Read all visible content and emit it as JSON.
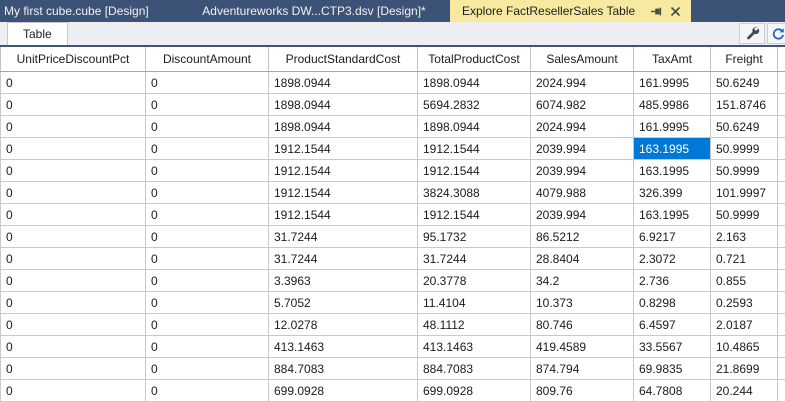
{
  "window": {
    "tabs": [
      {
        "label": "My first cube.cube [Design]",
        "state": "inactive"
      },
      {
        "label": "Adventureworks DW...CTP3.dsv [Design]*",
        "state": "inactive"
      },
      {
        "label": "Explore FactResellerSales Table",
        "state": "active"
      }
    ]
  },
  "toolbar": {
    "table_tab_label": "Table",
    "buttons": [
      {
        "icon": "wrench-icon"
      },
      {
        "icon": "refresh-icon"
      }
    ]
  },
  "colors": {
    "tabstrip_bg": "#3d5277",
    "active_tab_bg": "#f7e9a0",
    "toolbar_bg": "#eeeef2",
    "selection": "#0078d7",
    "selection_text": "#ffffff",
    "grid_line": "#c9c9c9"
  },
  "grid": {
    "columns": [
      "UnitPriceDiscountPct",
      "DiscountAmount",
      "ProductStandardCost",
      "TotalProductCost",
      "SalesAmount",
      "TaxAmt",
      "Freight"
    ],
    "rows": [
      [
        "0",
        "0",
        "1898.0944",
        "1898.0944",
        "2024.994",
        "161.9995",
        "50.6249"
      ],
      [
        "0",
        "0",
        "1898.0944",
        "5694.2832",
        "6074.982",
        "485.9986",
        "151.8746"
      ],
      [
        "0",
        "0",
        "1898.0944",
        "1898.0944",
        "2024.994",
        "161.9995",
        "50.6249"
      ],
      [
        "0",
        "0",
        "1912.1544",
        "1912.1544",
        "2039.994",
        "163.1995",
        "50.9999"
      ],
      [
        "0",
        "0",
        "1912.1544",
        "1912.1544",
        "2039.994",
        "163.1995",
        "50.9999"
      ],
      [
        "0",
        "0",
        "1912.1544",
        "3824.3088",
        "4079.988",
        "326.399",
        "101.9997"
      ],
      [
        "0",
        "0",
        "1912.1544",
        "1912.1544",
        "2039.994",
        "163.1995",
        "50.9999"
      ],
      [
        "0",
        "0",
        "31.7244",
        "95.1732",
        "86.5212",
        "6.9217",
        "2.163"
      ],
      [
        "0",
        "0",
        "31.7244",
        "31.7244",
        "28.8404",
        "2.3072",
        "0.721"
      ],
      [
        "0",
        "0",
        "3.3963",
        "20.3778",
        "34.2",
        "2.736",
        "0.855"
      ],
      [
        "0",
        "0",
        "5.7052",
        "11.4104",
        "10.373",
        "0.8298",
        "0.2593"
      ],
      [
        "0",
        "0",
        "12.0278",
        "48.1112",
        "80.746",
        "6.4597",
        "2.0187"
      ],
      [
        "0",
        "0",
        "413.1463",
        "413.1463",
        "419.4589",
        "33.5567",
        "10.4865"
      ],
      [
        "0",
        "0",
        "884.7083",
        "884.7083",
        "874.794",
        "69.9835",
        "21.8699"
      ],
      [
        "0",
        "0",
        "699.0928",
        "699.0928",
        "809.76",
        "64.7808",
        "20.244"
      ]
    ],
    "selected_cell": {
      "row": 4,
      "column": "TaxAmt",
      "value": "163.1995"
    }
  }
}
